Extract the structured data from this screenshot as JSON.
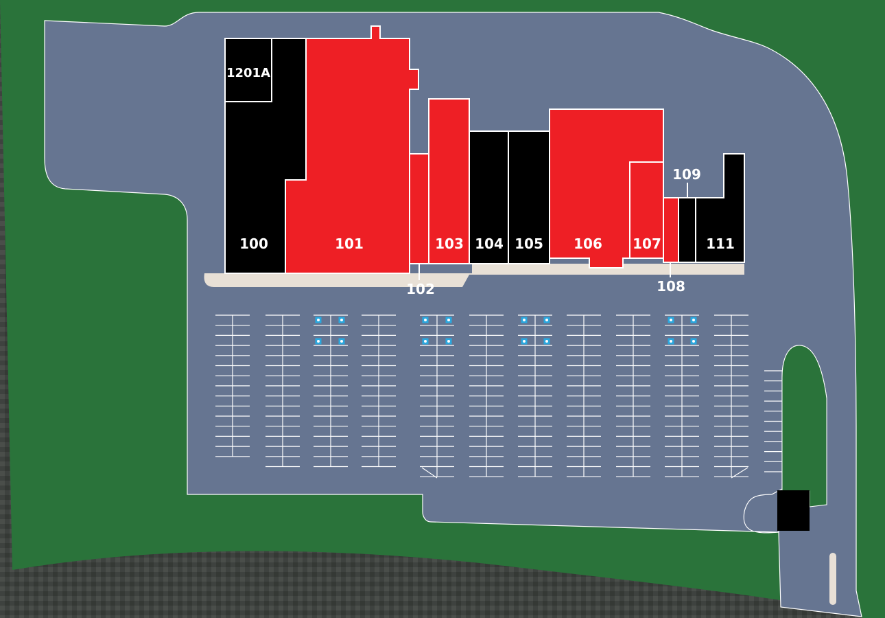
{
  "colors": {
    "grass": "#2a733a",
    "pavement": "#667591",
    "available": "#ee1f25",
    "leased": "#000000",
    "sidewalk": "#e8e0d6",
    "outline": "#ffffff",
    "accessible": "#2aa8df"
  },
  "units": [
    {
      "id": "1201A",
      "status": "leased"
    },
    {
      "id": "100",
      "status": "leased"
    },
    {
      "id": "101",
      "status": "available"
    },
    {
      "id": "102",
      "status": "available"
    },
    {
      "id": "103",
      "status": "available"
    },
    {
      "id": "104",
      "status": "leased"
    },
    {
      "id": "105",
      "status": "leased"
    },
    {
      "id": "106",
      "status": "available"
    },
    {
      "id": "107",
      "status": "available"
    },
    {
      "id": "108",
      "status": "available"
    },
    {
      "id": "109",
      "status": "leased"
    },
    {
      "id": "111",
      "status": "leased"
    }
  ],
  "icons": [
    "accessible-parking-icon"
  ]
}
